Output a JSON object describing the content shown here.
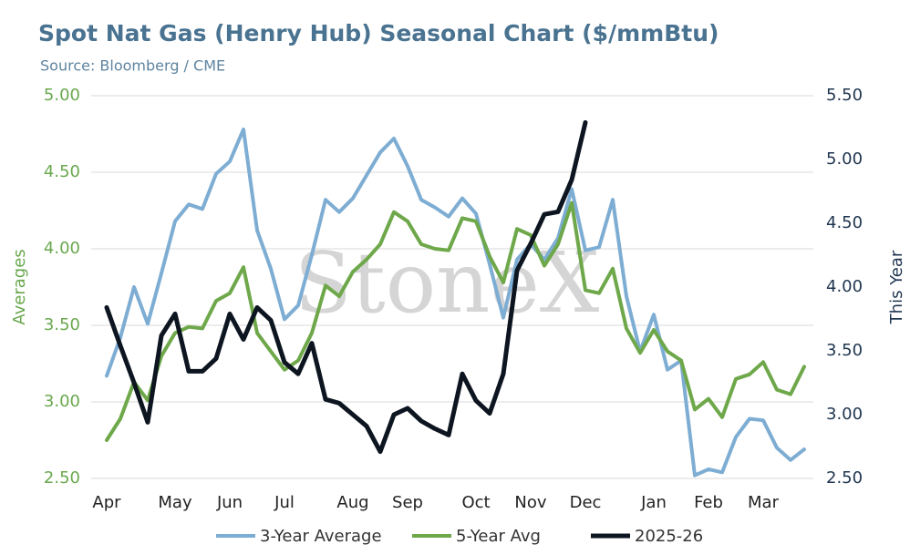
{
  "chart_data": {
    "type": "line",
    "title": "Spot Nat Gas (Henry Hub) Seasonal Chart ($/mmBtu)",
    "subtitle": "Source: Bloomberg / CME",
    "watermark": "StoneX",
    "y_label": "Averages",
    "y2_label": "This Year",
    "categories": [
      "Apr",
      null,
      null,
      null,
      null,
      "May",
      null,
      null,
      null,
      "Jun",
      null,
      null,
      null,
      "Jul",
      null,
      null,
      null,
      null,
      "Aug",
      null,
      null,
      null,
      "Sep",
      null,
      null,
      null,
      null,
      "Oct",
      null,
      null,
      null,
      "Nov",
      null,
      null,
      null,
      "Dec",
      null,
      null,
      null,
      null,
      "Jan",
      null,
      null,
      null,
      "Feb",
      null,
      null,
      null,
      "Mar",
      null,
      null,
      null
    ],
    "series": [
      {
        "name": "3-Year Average",
        "color": "#7eadd3",
        "values": [
          3.17,
          3.42,
          3.75,
          3.51,
          3.84,
          4.18,
          4.29,
          4.26,
          4.49,
          4.57,
          4.78,
          4.12,
          3.87,
          3.54,
          3.63,
          3.96,
          4.32,
          4.24,
          4.33,
          4.48,
          4.63,
          4.72,
          4.54,
          4.32,
          4.27,
          4.21,
          4.33,
          4.23,
          3.9,
          3.55,
          3.93,
          4.03,
          3.93,
          4.07,
          4.39,
          3.99,
          4.01,
          4.32,
          3.69,
          3.33,
          3.57,
          3.21,
          3.27,
          2.52,
          2.56,
          2.54,
          2.77,
          2.89,
          2.88,
          2.7,
          2.62,
          2.69
        ]
      },
      {
        "name": "5-Year Avg",
        "color": "#6ea84a",
        "values": [
          2.75,
          2.89,
          3.13,
          3.01,
          3.3,
          3.45,
          3.49,
          3.48,
          3.66,
          3.71,
          3.88,
          3.45,
          3.33,
          3.21,
          3.27,
          3.45,
          3.76,
          3.69,
          3.85,
          3.93,
          4.03,
          4.24,
          4.18,
          4.03,
          4.0,
          3.99,
          4.2,
          4.18,
          3.95,
          3.78,
          4.13,
          4.09,
          3.89,
          4.03,
          4.3,
          3.73,
          3.71,
          3.87,
          3.48,
          3.32,
          3.47,
          3.33,
          3.27,
          2.95,
          3.02,
          2.9,
          3.15,
          3.18,
          3.26,
          3.08,
          3.05,
          3.23
        ]
      },
      {
        "name": "2025-26",
        "color": "#0d1520",
        "axis": "y2",
        "values": [
          3.84,
          3.54,
          3.25,
          2.94,
          3.62,
          3.79,
          3.34,
          3.34,
          3.44,
          3.79,
          3.59,
          3.84,
          3.74,
          3.41,
          3.32,
          3.56,
          3.12,
          3.09,
          3.0,
          2.91,
          2.71,
          3.0,
          3.05,
          2.95,
          2.89,
          2.84,
          3.32,
          3.11,
          3.01,
          3.32,
          4.13,
          4.34,
          4.57,
          4.59,
          4.84,
          5.29,
          null,
          null,
          null,
          null,
          null,
          null,
          null,
          null,
          null,
          null,
          null,
          null,
          null,
          null,
          null,
          null
        ]
      }
    ],
    "ylim": [
      2.5,
      5.0
    ],
    "yticks": [
      {
        "value": 2.5,
        "label": "2.50"
      },
      {
        "value": 3,
        "label": "3.00"
      },
      {
        "value": 3.5,
        "label": "3.50"
      },
      {
        "value": 4,
        "label": "4.00"
      },
      {
        "value": 4.5,
        "label": "4.50"
      },
      {
        "value": 5,
        "label": "5.00"
      }
    ],
    "y2lim": [
      2.5,
      5.5
    ],
    "y2ticks": [
      {
        "value": 2.5,
        "label": "2.50"
      },
      {
        "value": 3,
        "label": "3.00"
      },
      {
        "value": 3.5,
        "label": "3.50"
      },
      {
        "value": 4,
        "label": "4.00"
      },
      {
        "value": 4.5,
        "label": "4.50"
      },
      {
        "value": 5,
        "label": "5.00"
      },
      {
        "value": 5.5,
        "label": "5.50"
      }
    ],
    "grid": true
  }
}
